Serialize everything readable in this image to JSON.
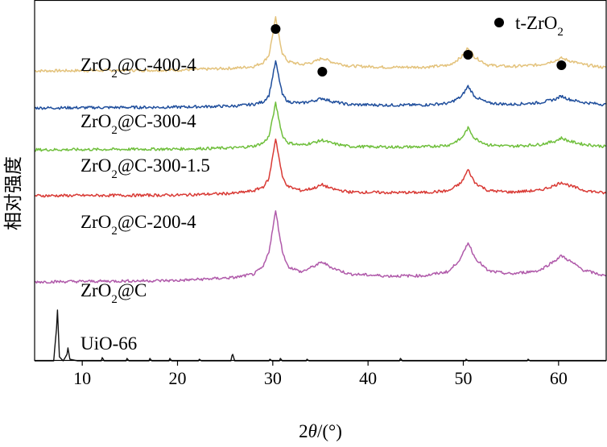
{
  "chart_data": {
    "type": "line",
    "title": "",
    "xlabel_prefix": "2",
    "xlabel_symbol": "θ",
    "xlabel_suffix": "/(°)",
    "ylabel": "相对强度",
    "xlim": [
      5,
      65
    ],
    "x_ticks": [
      10,
      20,
      30,
      40,
      50,
      60
    ],
    "y_ticks_shown": false,
    "grid": false,
    "legend": {
      "marker": "filled-circle",
      "label_prefix": "t-ZrO",
      "label_subscript": "2",
      "placement": "top-right"
    },
    "peak_marker_positions_2theta": [
      30.3,
      35.2,
      50.5,
      60.3
    ],
    "series": [
      {
        "name_parts": [
          "ZrO",
          "2",
          "@C-400-4"
        ],
        "color": "#e3c27b",
        "baseline": 0.88,
        "slope": -0.04,
        "x": [
          5,
          10,
          20,
          26,
          28,
          29,
          29.6,
          30.3,
          31,
          31.6,
          33,
          34.3,
          35.2,
          36.2,
          38,
          42,
          46,
          48.5,
          49.8,
          50.5,
          51.2,
          52.6,
          55,
          58,
          59.6,
          60.3,
          61.1,
          62.6,
          65
        ],
        "y": [
          0.0,
          0.0,
          0.0,
          0.02,
          0.04,
          0.09,
          0.18,
          0.64,
          0.2,
          0.1,
          0.06,
          0.09,
          0.14,
          0.09,
          0.04,
          0.02,
          0.02,
          0.04,
          0.14,
          0.26,
          0.14,
          0.04,
          0.02,
          0.04,
          0.09,
          0.12,
          0.09,
          0.04,
          0.0
        ]
      },
      {
        "name_parts": [
          "ZrO",
          "2",
          "@C-300-4"
        ],
        "color": "#1f4e9c",
        "baseline": 1.34,
        "slope": -0.04,
        "x": [
          5,
          10,
          20,
          26,
          28,
          29,
          29.6,
          30.3,
          31,
          31.6,
          33,
          34.3,
          35.2,
          36.2,
          38,
          42,
          46,
          48.5,
          49.8,
          50.5,
          51.2,
          52.6,
          55,
          58,
          59.6,
          60.3,
          61.1,
          62.6,
          65
        ],
        "y": [
          0.0,
          0.0,
          0.0,
          0.01,
          0.03,
          0.06,
          0.14,
          0.56,
          0.15,
          0.06,
          0.04,
          0.07,
          0.1,
          0.06,
          0.02,
          0.01,
          0.01,
          0.03,
          0.11,
          0.24,
          0.11,
          0.03,
          0.01,
          0.03,
          0.07,
          0.11,
          0.07,
          0.03,
          0.0
        ]
      },
      {
        "name_parts": [
          "ZrO",
          "2",
          "@C-300-1.5"
        ],
        "color": "#6fbf3c",
        "baseline": 1.86,
        "slope": -0.04,
        "x": [
          5,
          10,
          20,
          26,
          28,
          29,
          29.6,
          30.3,
          31,
          31.6,
          33,
          34.3,
          35.2,
          36.2,
          38,
          42,
          46,
          48.5,
          49.8,
          50.5,
          51.2,
          52.6,
          55,
          58,
          59.6,
          60.3,
          61.1,
          62.6,
          65
        ],
        "y": [
          0.0,
          0.0,
          0.0,
          0.01,
          0.03,
          0.07,
          0.15,
          0.56,
          0.16,
          0.07,
          0.04,
          0.07,
          0.1,
          0.06,
          0.02,
          0.01,
          0.01,
          0.03,
          0.11,
          0.24,
          0.11,
          0.03,
          0.01,
          0.03,
          0.07,
          0.11,
          0.07,
          0.03,
          0.0
        ]
      },
      {
        "name_parts": [
          "ZrO",
          "2",
          "@C-200-4"
        ],
        "color": "#d93a35",
        "baseline": 2.43,
        "slope": -0.03,
        "x": [
          5,
          10,
          20,
          26,
          28,
          29,
          29.6,
          30.3,
          31,
          31.6,
          33,
          34.3,
          35.2,
          36.2,
          38,
          42,
          46,
          48.5,
          49.8,
          50.5,
          51.2,
          52.6,
          55,
          58,
          59.6,
          60.3,
          61.1,
          62.6,
          65
        ],
        "y": [
          0.0,
          0.0,
          0.0,
          0.02,
          0.05,
          0.1,
          0.2,
          0.7,
          0.22,
          0.1,
          0.05,
          0.08,
          0.12,
          0.07,
          0.03,
          0.02,
          0.02,
          0.04,
          0.14,
          0.3,
          0.14,
          0.04,
          0.02,
          0.04,
          0.1,
          0.14,
          0.1,
          0.04,
          0.0
        ]
      },
      {
        "name_parts": [
          "ZrO",
          "2",
          "@C"
        ],
        "color": "#b05aaa",
        "baseline": 3.5,
        "slope": -0.07,
        "x": [
          5,
          10,
          20,
          26,
          28,
          29,
          29.6,
          30.3,
          31,
          31.6,
          33,
          34.3,
          35.2,
          36.2,
          38,
          42,
          46,
          48.5,
          49.8,
          50.5,
          51.2,
          52.6,
          55,
          58,
          59.6,
          60.3,
          61.1,
          62.6,
          65
        ],
        "y": [
          0.0,
          0.0,
          0.0,
          0.03,
          0.07,
          0.16,
          0.35,
          0.85,
          0.35,
          0.16,
          0.09,
          0.16,
          0.21,
          0.14,
          0.06,
          0.03,
          0.03,
          0.08,
          0.25,
          0.44,
          0.25,
          0.08,
          0.04,
          0.08,
          0.2,
          0.26,
          0.2,
          0.08,
          0.0
        ]
      },
      {
        "name_parts": [
          "UiO-66",
          "",
          ""
        ],
        "color": "#111111",
        "baseline": 4.48,
        "slope": 0,
        "x": [
          5,
          7.0,
          7.3,
          7.4,
          7.6,
          8.0,
          8.4,
          8.5,
          8.7,
          9.5,
          12.0,
          12.1,
          12.3,
          14.6,
          14.7,
          14.9,
          17.0,
          17.1,
          17.3,
          19.1,
          19.2,
          19.4,
          22.2,
          22.3,
          22.5,
          25.6,
          25.7,
          25.8,
          26.0,
          29.6,
          29.7,
          29.9,
          30.7,
          30.8,
          31.0,
          33.5,
          33.6,
          33.8,
          43.3,
          43.4,
          43.6,
          50.2,
          50.3,
          50.5,
          56.7,
          56.8,
          57.0,
          65
        ],
        "y": [
          0.0,
          0.0,
          0.4,
          0.63,
          0.05,
          0.0,
          0.08,
          0.16,
          0.02,
          0.0,
          0.0,
          0.04,
          0.0,
          0.0,
          0.03,
          0.0,
          0.0,
          0.03,
          0.0,
          0.0,
          0.03,
          0.0,
          0.0,
          0.02,
          0.0,
          0.0,
          0.06,
          0.08,
          0.0,
          0.0,
          0.02,
          0.0,
          0.0,
          0.03,
          0.0,
          0.0,
          0.02,
          0.0,
          0.0,
          0.03,
          0.0,
          0.0,
          0.02,
          0.0,
          0.0,
          0.02,
          0.0,
          0.0
        ]
      }
    ]
  }
}
